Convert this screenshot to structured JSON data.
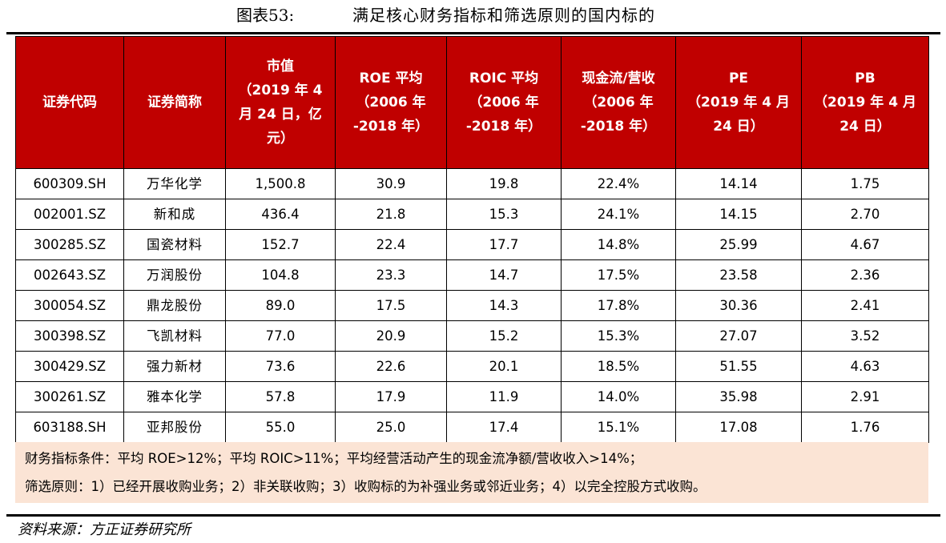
{
  "caption": {
    "label": "图表53:",
    "text": "满足核心财务指标和筛选原则的国内标的"
  },
  "table": {
    "headers": [
      [
        "证券代码"
      ],
      [
        "证券简称"
      ],
      [
        "市值",
        "（2019 年 4",
        "月 24 日，亿",
        "元）"
      ],
      [
        "ROE 平均",
        "（2006 年",
        "-2018 年）"
      ],
      [
        "ROIC 平均",
        "（2006 年",
        "-2018 年）"
      ],
      [
        "现金流/营收",
        "（2006 年",
        "-2018 年）"
      ],
      [
        "PE",
        "（2019 年 4 月",
        "24 日）"
      ],
      [
        "PB",
        "（2019 年 4 月",
        "24 日）"
      ]
    ],
    "rows": [
      [
        "600309.SH",
        "万华化学",
        "1,500.8",
        "30.9",
        "19.8",
        "22.4%",
        "14.14",
        "1.75"
      ],
      [
        "002001.SZ",
        "新和成",
        "436.4",
        "21.8",
        "15.3",
        "24.1%",
        "14.15",
        "2.70"
      ],
      [
        "300285.SZ",
        "国瓷材料",
        "152.7",
        "22.4",
        "17.7",
        "14.8%",
        "25.99",
        "4.67"
      ],
      [
        "002643.SZ",
        "万润股份",
        "104.8",
        "23.3",
        "14.7",
        "17.5%",
        "23.58",
        "2.36"
      ],
      [
        "300054.SZ",
        "鼎龙股份",
        "89.0",
        "17.5",
        "14.3",
        "17.8%",
        "30.36",
        "2.41"
      ],
      [
        "300398.SZ",
        "飞凯材料",
        "77.0",
        "20.9",
        "15.2",
        "15.3%",
        "27.07",
        "3.52"
      ],
      [
        "300429.SZ",
        "强力新材",
        "73.6",
        "22.6",
        "20.1",
        "18.5%",
        "51.55",
        "4.63"
      ],
      [
        "300261.SZ",
        "雅本化学",
        "57.8",
        "17.9",
        "11.9",
        "14.0%",
        "35.98",
        "2.91"
      ],
      [
        "603188.SH",
        "亚邦股份",
        "55.0",
        "25.0",
        "17.4",
        "15.1%",
        "17.08",
        "1.76"
      ]
    ]
  },
  "notes": {
    "line1": "财务指标条件：平均 ROE>12%；平均 ROIC>11%；平均经营活动产生的现金流净额/营收收入>14%；",
    "line2": "筛选原则：1）已经开展收购业务；2）非关联收购；3）收购标的为补强业务或邻近业务；4）以完全控股方式收购。"
  },
  "source": "资料来源：方正证券研究所"
}
